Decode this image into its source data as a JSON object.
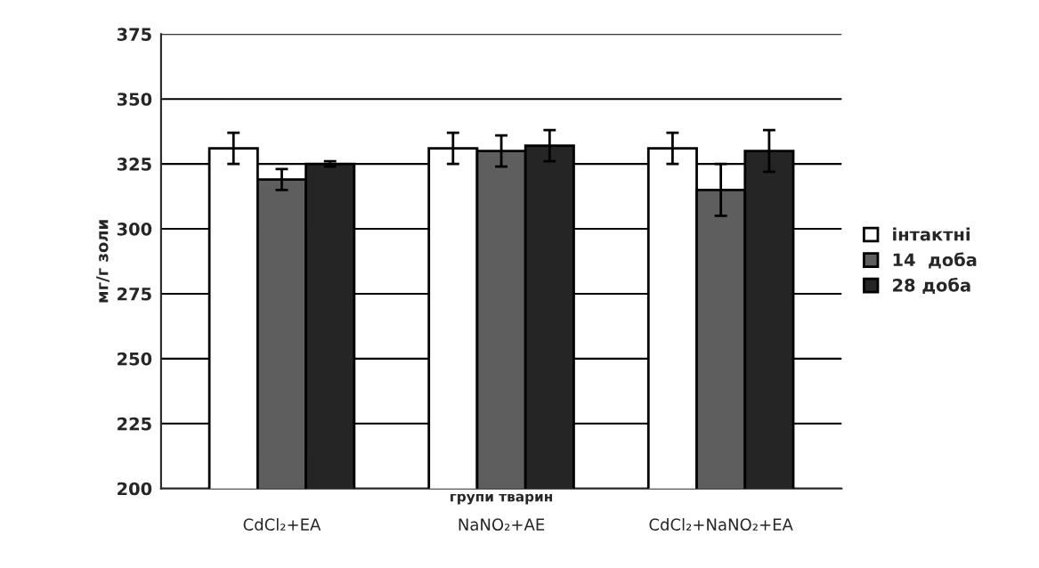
{
  "chart_data": {
    "type": "bar",
    "xlabel": "групи тварин",
    "ylabel": "мг/г золи",
    "categories": [
      "CdCl₂+EA",
      "NaNO₂+AE",
      "CdCl₂+NaNO₂+EA"
    ],
    "series": [
      {
        "name": "інтактні",
        "color": "#ffffff",
        "values": [
          331,
          331,
          331
        ],
        "errors": [
          6,
          6,
          6
        ]
      },
      {
        "name": "14  доба",
        "color": "#5e5e5e",
        "values": [
          319,
          330,
          315
        ],
        "errors": [
          4,
          6,
          10
        ]
      },
      {
        "name": "28 доба",
        "color": "#252525",
        "values": [
          325,
          332,
          330
        ],
        "errors": [
          1,
          6,
          8
        ]
      }
    ],
    "ylim": [
      200,
      375
    ],
    "yticks": [
      200,
      225,
      250,
      275,
      300,
      325,
      350,
      375
    ],
    "grid": "y",
    "legend": "right"
  }
}
